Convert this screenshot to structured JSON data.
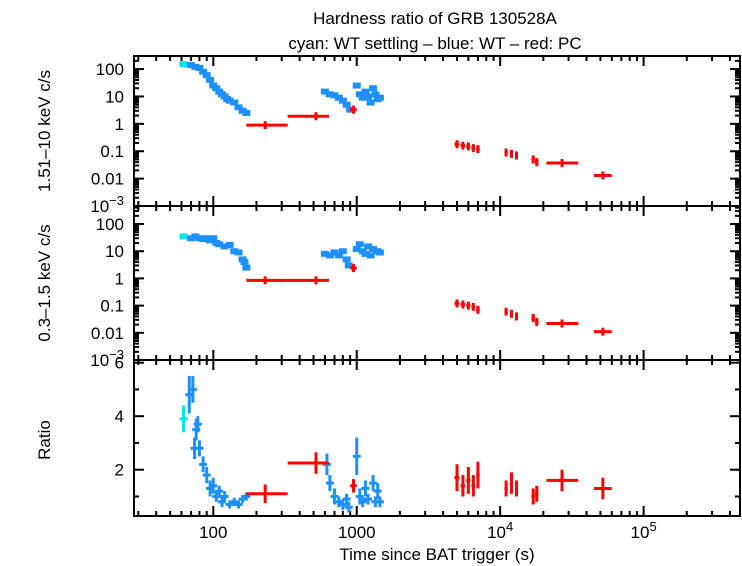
{
  "chart_data": {
    "type": "scatter",
    "title": "Hardness ratio of GRB 130528A",
    "subtitle": "cyan: WT settling – blue: WT – red: PC",
    "xlabel": "Time since BAT trigger (s)",
    "xscale": "log",
    "xlim": [
      28,
      470000
    ],
    "x_ticks": [
      {
        "v": 100,
        "label": "100"
      },
      {
        "v": 1000,
        "label": "1000"
      },
      {
        "v": 10000,
        "label": "10",
        "sup": "4"
      },
      {
        "v": 100000,
        "label": "10",
        "sup": "5"
      }
    ],
    "colors": {
      "wt_settling": "#00e5ee",
      "wt": "#1e8fff",
      "pc": "#ff0000"
    },
    "panels": [
      {
        "key": "hard",
        "ylabel": "1.51–10 keV c/s",
        "yscale": "log",
        "ylim": [
          0.001,
          300
        ],
        "y_ticks": [
          {
            "v": 100,
            "label": "100"
          },
          {
            "v": 10,
            "label": "10"
          },
          {
            "v": 1,
            "label": "1"
          },
          {
            "v": 0.1,
            "label": "0.1"
          },
          {
            "v": 0.01,
            "label": "0.01"
          },
          {
            "v": 0.001,
            "label": "10",
            "sup": "−3"
          }
        ]
      },
      {
        "key": "soft",
        "ylabel": "0.3–1.5 keV c/s",
        "yscale": "log",
        "ylim": [
          0.001,
          460
        ],
        "y_ticks": [
          {
            "v": 100,
            "label": "100"
          },
          {
            "v": 10,
            "label": "10"
          },
          {
            "v": 1,
            "label": "1"
          },
          {
            "v": 0.1,
            "label": "0.1"
          },
          {
            "v": 0.01,
            "label": "0.01"
          },
          {
            "v": 0.001,
            "label": "10",
            "sup": "−3"
          }
        ]
      },
      {
        "key": "ratio",
        "ylabel": "Ratio",
        "yscale": "linear",
        "ylim": [
          0.27,
          6.1
        ],
        "y_ticks": [
          {
            "v": 2,
            "label": "2"
          },
          {
            "v": 4,
            "label": "4"
          },
          {
            "v": 6,
            "label": "6"
          }
        ]
      }
    ],
    "series": {
      "wt_settling": {
        "hard": [
          [
            62,
            150
          ]
        ],
        "soft": [
          [
            62,
            35
          ]
        ],
        "ratio": [
          [
            62,
            3.9,
            0.5
          ]
        ]
      },
      "wt": {
        "hard": [
          [
            70,
            140
          ],
          [
            75,
            120
          ],
          [
            80,
            110
          ],
          [
            85,
            80
          ],
          [
            90,
            60
          ],
          [
            95,
            40
          ],
          [
            100,
            25
          ],
          [
            105,
            20
          ],
          [
            110,
            15
          ],
          [
            115,
            12
          ],
          [
            120,
            10
          ],
          [
            125,
            8
          ],
          [
            130,
            7
          ],
          [
            140,
            6
          ],
          [
            150,
            4
          ],
          [
            160,
            3
          ],
          [
            170,
            2.5
          ],
          [
            600,
            15
          ],
          [
            650,
            12
          ],
          [
            700,
            11
          ],
          [
            750,
            9
          ],
          [
            800,
            7
          ],
          [
            850,
            5
          ],
          [
            900,
            3.3
          ],
          [
            1000,
            25
          ],
          [
            1050,
            12
          ],
          [
            1100,
            9
          ],
          [
            1150,
            15
          ],
          [
            1200,
            10
          ],
          [
            1250,
            6
          ],
          [
            1300,
            20
          ],
          [
            1350,
            12
          ],
          [
            1400,
            8
          ],
          [
            1450,
            9
          ]
        ],
        "soft": [
          [
            70,
            30
          ],
          [
            75,
            35
          ],
          [
            80,
            30
          ],
          [
            85,
            28
          ],
          [
            90,
            30
          ],
          [
            95,
            25
          ],
          [
            100,
            30
          ],
          [
            105,
            20
          ],
          [
            110,
            18
          ],
          [
            120,
            15
          ],
          [
            130,
            17
          ],
          [
            140,
            10
          ],
          [
            150,
            9
          ],
          [
            160,
            5
          ],
          [
            165,
            4
          ],
          [
            170,
            2.5
          ],
          [
            600,
            8
          ],
          [
            650,
            7
          ],
          [
            700,
            9
          ],
          [
            750,
            7
          ],
          [
            800,
            10
          ],
          [
            850,
            5
          ],
          [
            880,
            3
          ],
          [
            1000,
            12
          ],
          [
            1050,
            18
          ],
          [
            1100,
            10
          ],
          [
            1150,
            8
          ],
          [
            1200,
            15
          ],
          [
            1250,
            7
          ],
          [
            1300,
            12
          ],
          [
            1400,
            10
          ],
          [
            1450,
            9
          ]
        ],
        "ratio": [
          [
            68,
            4.8,
            0.7
          ],
          [
            72,
            5,
            0.5
          ],
          [
            74,
            2.8,
            0.4
          ],
          [
            76,
            3.5,
            0.4
          ],
          [
            78,
            3.7,
            0.3
          ],
          [
            80,
            2.8,
            0.3
          ],
          [
            85,
            2.2,
            0.3
          ],
          [
            90,
            1.8,
            0.3
          ],
          [
            95,
            1.3,
            0.3
          ],
          [
            100,
            1.4,
            0.3
          ],
          [
            105,
            1.0,
            0.2
          ],
          [
            110,
            1.2,
            0.2
          ],
          [
            115,
            0.8,
            0.2
          ],
          [
            120,
            1.0,
            0.2
          ],
          [
            130,
            0.7,
            0.15
          ],
          [
            140,
            0.8,
            0.15
          ],
          [
            150,
            0.7,
            0.15
          ],
          [
            160,
            0.9,
            0.15
          ],
          [
            170,
            1.0,
            0.15
          ],
          [
            620,
            2.2,
            0.4
          ],
          [
            650,
            1.5,
            0.3
          ],
          [
            700,
            1.0,
            0.3
          ],
          [
            750,
            0.8,
            0.2
          ],
          [
            800,
            0.7,
            0.2
          ],
          [
            850,
            0.9,
            0.2
          ],
          [
            880,
            0.6,
            0.2
          ],
          [
            1000,
            2.5,
            0.7
          ],
          [
            1050,
            1.0,
            0.3
          ],
          [
            1100,
            0.8,
            0.2
          ],
          [
            1150,
            1.3,
            0.3
          ],
          [
            1200,
            0.9,
            0.2
          ],
          [
            1300,
            1.5,
            0.3
          ],
          [
            1350,
            0.8,
            0.2
          ],
          [
            1400,
            1.2,
            0.3
          ],
          [
            1450,
            0.8,
            0.2
          ]
        ]
      },
      "pc": [
        {
          "t": 230,
          "t_lo": 170,
          "t_hi": 330,
          "hard": 0.9,
          "soft": 0.85,
          "ratio": 1.1,
          "ratio_err": 0.35
        },
        {
          "t": 520,
          "t_lo": 330,
          "t_hi": 640,
          "hard": 1.9,
          "soft": 0.85,
          "ratio": 2.25,
          "ratio_err": 0.4
        },
        {
          "t": 950,
          "t_lo": 900,
          "t_hi": 1000,
          "hard": 3.3,
          "soft": 2.4,
          "ratio": 1.4,
          "ratio_err": 0.25
        },
        {
          "t": 5000,
          "t_lo": 4800,
          "t_hi": 5200,
          "hard": 0.18,
          "soft": 0.12,
          "ratio": 1.7,
          "ratio_err": 0.5
        },
        {
          "t": 5500,
          "t_lo": 5300,
          "t_hi": 5700,
          "hard": 0.16,
          "soft": 0.11,
          "ratio": 1.4,
          "ratio_err": 0.4
        },
        {
          "t": 6000,
          "t_lo": 5800,
          "t_hi": 6200,
          "hard": 0.15,
          "soft": 0.1,
          "ratio": 1.6,
          "ratio_err": 0.5
        },
        {
          "t": 6500,
          "t_lo": 6300,
          "t_hi": 6700,
          "hard": 0.13,
          "soft": 0.09,
          "ratio": 1.4,
          "ratio_err": 0.4
        },
        {
          "t": 7000,
          "t_lo": 6800,
          "t_hi": 7200,
          "hard": 0.12,
          "soft": 0.07,
          "ratio": 1.8,
          "ratio_err": 0.5
        },
        {
          "t": 11000,
          "t_lo": 10700,
          "t_hi": 11300,
          "hard": 0.09,
          "soft": 0.06,
          "ratio": 1.3,
          "ratio_err": 0.3
        },
        {
          "t": 12000,
          "t_lo": 11700,
          "t_hi": 12300,
          "hard": 0.08,
          "soft": 0.05,
          "ratio": 1.5,
          "ratio_err": 0.4
        },
        {
          "t": 13000,
          "t_lo": 12700,
          "t_hi": 13300,
          "hard": 0.07,
          "soft": 0.04,
          "ratio": 1.3,
          "ratio_err": 0.3
        },
        {
          "t": 17000,
          "t_lo": 16500,
          "t_hi": 17500,
          "hard": 0.05,
          "soft": 0.035,
          "ratio": 1.0,
          "ratio_err": 0.3
        },
        {
          "t": 18000,
          "t_lo": 17500,
          "t_hi": 18500,
          "hard": 0.04,
          "soft": 0.025,
          "ratio": 1.1,
          "ratio_err": 0.3
        },
        {
          "t": 27000,
          "t_lo": 21000,
          "t_hi": 35000,
          "hard": 0.037,
          "soft": 0.022,
          "ratio": 1.6,
          "ratio_err": 0.4
        },
        {
          "t": 52000,
          "t_lo": 45000,
          "t_hi": 60000,
          "hard": 0.013,
          "soft": 0.011,
          "ratio": 1.3,
          "ratio_err": 0.4
        }
      ]
    }
  }
}
